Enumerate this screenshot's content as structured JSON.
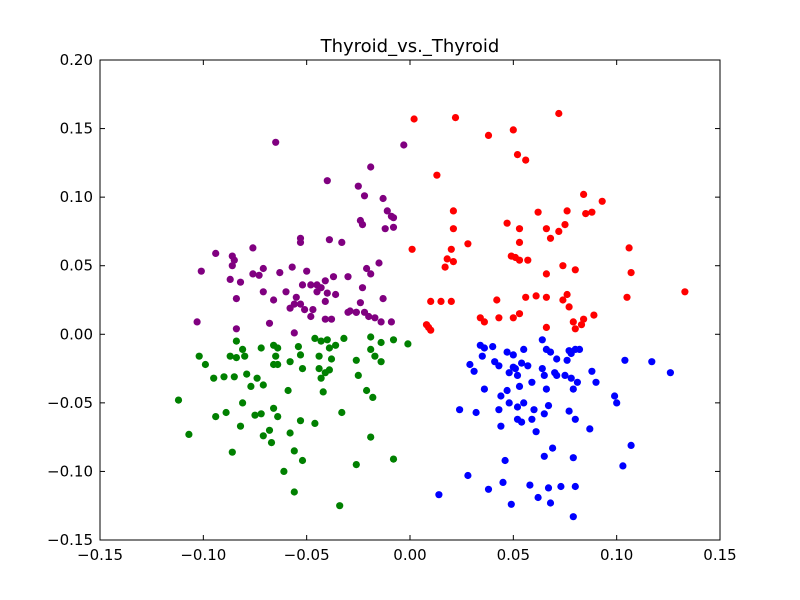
{
  "chart_data": {
    "type": "scatter",
    "title": "Thyroid_vs._Thyroid",
    "xlabel": "",
    "ylabel": "",
    "xlim": [
      -0.15,
      0.15
    ],
    "ylim": [
      -0.15,
      0.2
    ],
    "xticks": [
      -0.15,
      -0.1,
      -0.05,
      0.0,
      0.05,
      0.1,
      0.15
    ],
    "xtick_labels": [
      "−0.15",
      "−0.10",
      "−0.05",
      "0.00",
      "0.05",
      "0.10",
      "0.15"
    ],
    "yticks": [
      -0.15,
      -0.1,
      -0.05,
      0.0,
      0.05,
      0.1,
      0.15,
      0.2
    ],
    "ytick_labels": [
      "−0.15",
      "−0.10",
      "−0.05",
      "0.00",
      "0.05",
      "0.10",
      "0.15",
      "0.20"
    ],
    "grid": false,
    "series": [
      {
        "color": "#800080",
        "points": [
          [
            -0.065,
            0.14
          ],
          [
            -0.019,
            0.122
          ],
          [
            -0.003,
            0.138
          ],
          [
            -0.04,
            0.112
          ],
          [
            -0.025,
            0.108
          ],
          [
            -0.022,
            0.101
          ],
          [
            -0.013,
            0.099
          ],
          [
            -0.011,
            0.09
          ],
          [
            -0.009,
            0.086
          ],
          [
            -0.008,
            0.085
          ],
          [
            -0.008,
            0.078
          ],
          [
            -0.024,
            0.083
          ],
          [
            -0.023,
            0.08
          ],
          [
            -0.012,
            0.077
          ],
          [
            -0.033,
            0.067
          ],
          [
            -0.053,
            0.07
          ],
          [
            -0.053,
            0.067
          ],
          [
            -0.039,
            0.069
          ],
          [
            -0.094,
            0.059
          ],
          [
            -0.086,
            0.057
          ],
          [
            -0.085,
            0.054
          ],
          [
            -0.076,
            0.063
          ],
          [
            -0.086,
            0.05
          ],
          [
            -0.073,
            0.043
          ],
          [
            -0.071,
            0.048
          ],
          [
            -0.076,
            0.044
          ],
          [
            -0.05,
            0.046
          ],
          [
            -0.057,
            0.049
          ],
          [
            -0.063,
            0.045
          ],
          [
            -0.101,
            0.046
          ],
          [
            -0.045,
            0.036
          ],
          [
            -0.048,
            0.036
          ],
          [
            -0.03,
            0.042
          ],
          [
            -0.037,
            0.042
          ],
          [
            -0.041,
            0.039
          ],
          [
            -0.087,
            0.04
          ],
          [
            -0.082,
            0.038
          ],
          [
            -0.084,
            0.026
          ],
          [
            -0.071,
            0.031
          ],
          [
            -0.066,
            0.025
          ],
          [
            -0.06,
            0.031
          ],
          [
            -0.055,
            0.027
          ],
          [
            -0.052,
            0.036
          ],
          [
            -0.043,
            0.034
          ],
          [
            -0.045,
            0.031
          ],
          [
            -0.04,
            0.03
          ],
          [
            -0.036,
            0.029
          ],
          [
            -0.021,
            0.048
          ],
          [
            -0.015,
            0.052
          ],
          [
            -0.019,
            0.044
          ],
          [
            -0.023,
            0.034
          ],
          [
            -0.013,
            0.026
          ],
          [
            -0.058,
            0.019
          ],
          [
            -0.053,
            0.022
          ],
          [
            -0.051,
            0.018
          ],
          [
            -0.047,
            0.018
          ],
          [
            -0.041,
            0.024
          ],
          [
            -0.029,
            0.017
          ],
          [
            -0.026,
            0.016
          ],
          [
            -0.024,
            0.023
          ],
          [
            -0.022,
            0.016
          ],
          [
            -0.02,
            0.013
          ],
          [
            -0.017,
            0.012
          ],
          [
            -0.014,
            0.009
          ],
          [
            -0.009,
            0.009
          ],
          [
            -0.103,
            0.009
          ],
          [
            -0.084,
            0.004
          ],
          [
            -0.068,
            0.008
          ],
          [
            -0.056,
            0.001
          ],
          [
            -0.048,
            0.013
          ],
          [
            -0.041,
            0.011
          ],
          [
            -0.038,
            0.011
          ],
          [
            -0.03,
            0.016
          ],
          [
            -0.026,
            0.016
          ],
          [
            -0.056,
            0.022
          ]
        ]
      },
      {
        "color": "#ff0000",
        "points": [
          [
            0.002,
            0.157
          ],
          [
            0.022,
            0.158
          ],
          [
            0.072,
            0.161
          ],
          [
            0.038,
            0.145
          ],
          [
            0.05,
            0.149
          ],
          [
            0.052,
            0.131
          ],
          [
            0.056,
            0.127
          ],
          [
            0.013,
            0.116
          ],
          [
            0.084,
            0.102
          ],
          [
            0.093,
            0.097
          ],
          [
            0.088,
            0.089
          ],
          [
            0.085,
            0.088
          ],
          [
            0.076,
            0.09
          ],
          [
            0.062,
            0.089
          ],
          [
            0.021,
            0.09
          ],
          [
            0.047,
            0.081
          ],
          [
            0.053,
            0.077
          ],
          [
            0.066,
            0.077
          ],
          [
            0.075,
            0.08
          ],
          [
            0.021,
            0.077
          ],
          [
            0.028,
            0.066
          ],
          [
            0.053,
            0.067
          ],
          [
            0.068,
            0.07
          ],
          [
            0.072,
            0.075
          ],
          [
            0.001,
            0.062
          ],
          [
            0.02,
            0.062
          ],
          [
            0.106,
            0.063
          ],
          [
            0.018,
            0.055
          ],
          [
            0.021,
            0.053
          ],
          [
            0.017,
            0.049
          ],
          [
            0.049,
            0.057
          ],
          [
            0.051,
            0.056
          ],
          [
            0.053,
            0.054
          ],
          [
            0.057,
            0.054
          ],
          [
            0.074,
            0.05
          ],
          [
            0.08,
            0.047
          ],
          [
            0.066,
            0.044
          ],
          [
            0.107,
            0.045
          ],
          [
            0.01,
            0.024
          ],
          [
            0.015,
            0.024
          ],
          [
            0.02,
            0.024
          ],
          [
            0.042,
            0.025
          ],
          [
            0.056,
            0.027
          ],
          [
            0.066,
            0.027
          ],
          [
            0.074,
            0.025
          ],
          [
            0.076,
            0.029
          ],
          [
            0.077,
            0.02
          ],
          [
            0.105,
            0.027
          ],
          [
            0.133,
            0.031
          ],
          [
            0.008,
            0.007
          ],
          [
            0.009,
            0.005
          ],
          [
            0.034,
            0.012
          ],
          [
            0.036,
            0.009
          ],
          [
            0.043,
            0.012
          ],
          [
            0.05,
            0.012
          ],
          [
            0.053,
            0.015
          ],
          [
            0.066,
            0.005
          ],
          [
            0.079,
            0.009
          ],
          [
            0.083,
            0.007
          ],
          [
            0.084,
            0.011
          ],
          [
            0.089,
            0.014
          ],
          [
            0.01,
            0.003
          ],
          [
            0.08,
            0.004
          ],
          [
            0.061,
            0.028
          ]
        ]
      },
      {
        "color": "#008000",
        "points": [
          [
            -0.102,
            -0.016
          ],
          [
            -0.099,
            -0.022
          ],
          [
            -0.087,
            -0.016
          ],
          [
            -0.084,
            -0.017
          ],
          [
            -0.08,
            -0.016
          ],
          [
            -0.084,
            -0.005
          ],
          [
            -0.081,
            -0.011
          ],
          [
            -0.072,
            -0.01
          ],
          [
            -0.066,
            -0.008
          ],
          [
            -0.064,
            -0.01
          ],
          [
            -0.065,
            -0.016
          ],
          [
            -0.054,
            -0.009
          ],
          [
            -0.046,
            -0.003
          ],
          [
            -0.043,
            -0.005
          ],
          [
            -0.04,
            -0.004
          ],
          [
            -0.039,
            -0.01
          ],
          [
            -0.036,
            -0.008
          ],
          [
            -0.032,
            -0.003
          ],
          [
            -0.026,
            -0.019
          ],
          [
            -0.019,
            -0.002
          ],
          [
            -0.019,
            -0.011
          ],
          [
            -0.008,
            -0.004
          ],
          [
            -0.001,
            -0.007
          ],
          [
            -0.014,
            -0.02
          ],
          [
            -0.079,
            -0.029
          ],
          [
            -0.074,
            -0.032
          ],
          [
            -0.066,
            -0.022
          ],
          [
            -0.058,
            -0.02
          ],
          [
            -0.052,
            -0.025
          ],
          [
            -0.044,
            -0.016
          ],
          [
            -0.038,
            -0.018
          ],
          [
            -0.09,
            -0.031
          ],
          [
            -0.085,
            -0.031
          ],
          [
            -0.095,
            -0.032
          ],
          [
            -0.077,
            -0.038
          ],
          [
            -0.071,
            -0.037
          ],
          [
            -0.064,
            -0.022
          ],
          [
            -0.059,
            -0.041
          ],
          [
            -0.053,
            -0.015
          ],
          [
            -0.044,
            -0.025
          ],
          [
            -0.043,
            -0.032
          ],
          [
            -0.041,
            -0.028
          ],
          [
            -0.039,
            -0.026
          ],
          [
            -0.025,
            -0.03
          ],
          [
            -0.021,
            -0.041
          ],
          [
            -0.042,
            -0.042
          ],
          [
            -0.018,
            -0.046
          ],
          [
            -0.112,
            -0.048
          ],
          [
            -0.089,
            -0.057
          ],
          [
            -0.081,
            -0.05
          ],
          [
            -0.094,
            -0.06
          ],
          [
            -0.075,
            -0.059
          ],
          [
            -0.066,
            -0.054
          ],
          [
            -0.064,
            -0.06
          ],
          [
            -0.072,
            -0.058
          ],
          [
            -0.053,
            -0.063
          ],
          [
            -0.046,
            -0.065
          ],
          [
            -0.033,
            -0.057
          ],
          [
            -0.082,
            -0.067
          ],
          [
            -0.068,
            -0.07
          ],
          [
            -0.071,
            -0.074
          ],
          [
            -0.067,
            -0.079
          ],
          [
            -0.058,
            -0.072
          ],
          [
            -0.107,
            -0.073
          ],
          [
            -0.086,
            -0.086
          ],
          [
            -0.056,
            -0.085
          ],
          [
            -0.052,
            -0.092
          ],
          [
            -0.061,
            -0.1
          ],
          [
            -0.026,
            -0.095
          ],
          [
            -0.008,
            -0.091
          ],
          [
            -0.019,
            -0.075
          ],
          [
            -0.056,
            -0.115
          ],
          [
            -0.034,
            -0.125
          ],
          [
            -0.014,
            -0.006
          ],
          [
            -0.017,
            -0.016
          ]
        ]
      },
      {
        "color": "#0000ff",
        "points": [
          [
            0.034,
            -0.008
          ],
          [
            0.036,
            -0.01
          ],
          [
            0.04,
            -0.009
          ],
          [
            0.047,
            -0.013
          ],
          [
            0.05,
            -0.015
          ],
          [
            0.055,
            -0.011
          ],
          [
            0.064,
            -0.004
          ],
          [
            0.066,
            -0.011
          ],
          [
            0.068,
            -0.013
          ],
          [
            0.071,
            -0.018
          ],
          [
            0.077,
            -0.012
          ],
          [
            0.08,
            -0.011
          ],
          [
            0.082,
            -0.011
          ],
          [
            0.104,
            -0.019
          ],
          [
            0.117,
            -0.02
          ],
          [
            0.126,
            -0.028
          ],
          [
            0.029,
            -0.022
          ],
          [
            0.031,
            -0.027
          ],
          [
            0.035,
            -0.016
          ],
          [
            0.041,
            -0.02
          ],
          [
            0.043,
            -0.023
          ],
          [
            0.048,
            -0.028
          ],
          [
            0.05,
            -0.024
          ],
          [
            0.051,
            -0.025
          ],
          [
            0.054,
            -0.021
          ],
          [
            0.057,
            -0.023
          ],
          [
            0.064,
            -0.025
          ],
          [
            0.065,
            -0.03
          ],
          [
            0.07,
            -0.028
          ],
          [
            0.076,
            -0.019
          ],
          [
            0.078,
            -0.014
          ],
          [
            0.088,
            -0.027
          ],
          [
            0.036,
            -0.04
          ],
          [
            0.044,
            -0.045
          ],
          [
            0.047,
            -0.041
          ],
          [
            0.053,
            -0.038
          ],
          [
            0.052,
            -0.03
          ],
          [
            0.059,
            -0.035
          ],
          [
            0.066,
            -0.04
          ],
          [
            0.071,
            -0.03
          ],
          [
            0.075,
            -0.03
          ],
          [
            0.078,
            -0.032
          ],
          [
            0.079,
            -0.04
          ],
          [
            0.081,
            -0.035
          ],
          [
            0.09,
            -0.035
          ],
          [
            0.099,
            -0.045
          ],
          [
            0.1,
            -0.05
          ],
          [
            0.024,
            -0.055
          ],
          [
            0.032,
            -0.057
          ],
          [
            0.043,
            -0.055
          ],
          [
            0.048,
            -0.05
          ],
          [
            0.052,
            -0.053
          ],
          [
            0.055,
            -0.05
          ],
          [
            0.06,
            -0.055
          ],
          [
            0.067,
            -0.052
          ],
          [
            0.077,
            -0.056
          ],
          [
            0.059,
            -0.062
          ],
          [
            0.065,
            -0.058
          ],
          [
            0.052,
            -0.062
          ],
          [
            0.054,
            -0.064
          ],
          [
            0.044,
            -0.067
          ],
          [
            0.08,
            -0.062
          ],
          [
            0.087,
            -0.069
          ],
          [
            0.061,
            -0.071
          ],
          [
            0.107,
            -0.081
          ],
          [
            0.069,
            -0.083
          ],
          [
            0.065,
            -0.089
          ],
          [
            0.079,
            -0.09
          ],
          [
            0.046,
            -0.092
          ],
          [
            0.103,
            -0.096
          ],
          [
            0.028,
            -0.103
          ],
          [
            0.038,
            -0.113
          ],
          [
            0.014,
            -0.117
          ],
          [
            0.058,
            -0.11
          ],
          [
            0.067,
            -0.112
          ],
          [
            0.073,
            -0.111
          ],
          [
            0.08,
            -0.111
          ],
          [
            0.062,
            -0.119
          ],
          [
            0.049,
            -0.124
          ],
          [
            0.068,
            -0.123
          ],
          [
            0.079,
            -0.133
          ],
          [
            0.045,
            -0.108
          ]
        ]
      }
    ]
  }
}
